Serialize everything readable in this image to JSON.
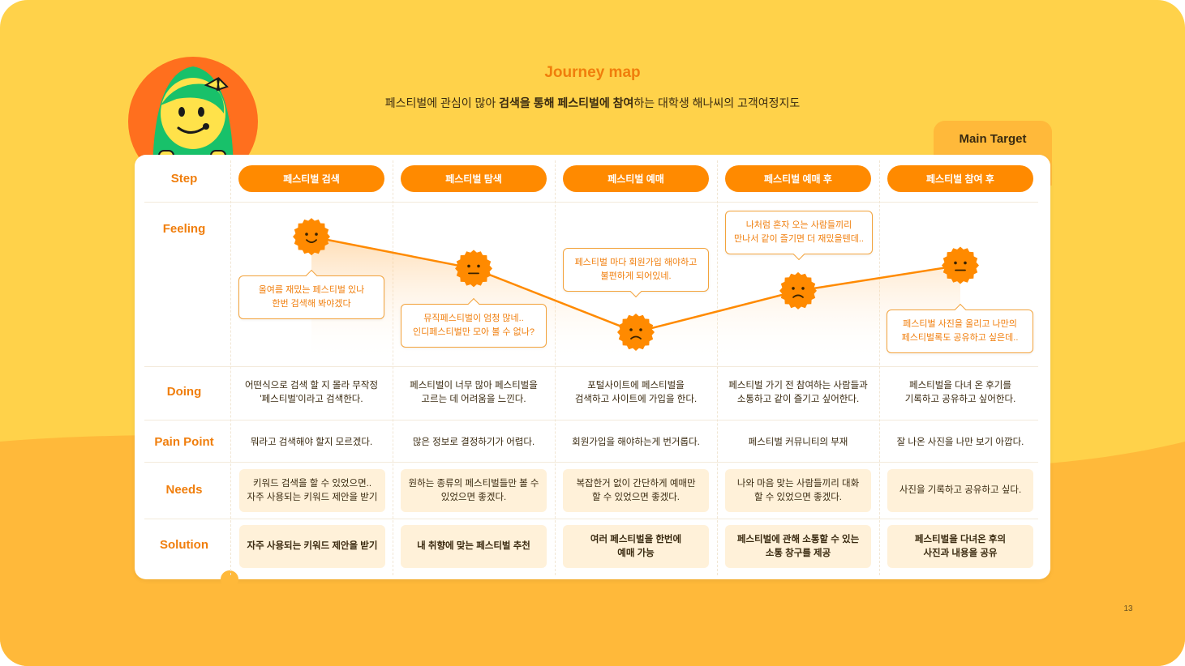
{
  "page": {
    "title": "Journey map",
    "subtitle_pre": "페스티벌에 관심이 많아 ",
    "subtitle_bold1": "검색을 통해 페스티벌에 참여",
    "subtitle_post": "하는 대학생 해나씨의 고객여정지도",
    "main_target": "Main Target",
    "page_number": "13"
  },
  "colors": {
    "background": "#FFD24A",
    "lower_band": "#FFB93A",
    "accent": "#FF8A00",
    "text_orange": "#F07E0C",
    "cell_fill": "#FFF1D9"
  },
  "row_labels": {
    "step": "Step",
    "feeling": "Feeling",
    "doing": "Doing",
    "pain": "Pain Point",
    "needs": "Needs",
    "solution": "Solution"
  },
  "steps": [
    {
      "step": "페스티벌 검색",
      "feeling_level": 4,
      "feeling_face": "smile-face-icon",
      "bubble": "올여름 재밌는 페스티벌 있나\n한번 검색해 봐야겠다",
      "doing": "어떤식으로 검색 할 지 몰라 무작정\n'페스티벌'이라고 검색한다.",
      "pain": "뭐라고 검색해야 할지 모르겠다.",
      "needs": "키워드 검색을 할 수 있었으면..\n자주 사용되는 키워드 제안을 받기",
      "solution": "자주 사용되는 키워드 제안을 받기"
    },
    {
      "step": "페스티벌 탐색",
      "feeling_level": 3,
      "feeling_face": "neutral-face-icon",
      "bubble": "뮤직페스티벌이 엄청 많네..\n인디페스티벌만 모아 볼 수 없나?",
      "doing": "페스티벌이 너무 많아 페스티벌을\n고르는 데 어려움을 느낀다.",
      "pain": "많은 정보로 결정하기가 어렵다.",
      "needs": "원하는 종류의 페스티벌들만 볼 수\n있었으면 좋겠다.",
      "solution": "내 취향에 맞는 페스티벌 추천"
    },
    {
      "step": "페스티벌 예매",
      "feeling_level": 1,
      "feeling_face": "frown-face-icon",
      "bubble": "페스티벌 마다 회원가입 해야하고\n불편하게 되어있네.",
      "doing": "포털사이트에 페스티벌을\n검색하고 사이트에 가입을 한다.",
      "pain": "회원가입을 해야하는게 번거롭다.",
      "needs": "복잡한거 없이 간단하게 예매만\n할 수 있었으면 좋겠다.",
      "solution": "여러 페스티벌을 한번에\n예매 가능"
    },
    {
      "step": "페스티벌 예매 후",
      "feeling_level": 2.3,
      "feeling_face": "frown-face-icon",
      "bubble": "나처럼 혼자 오는 사람들끼리\n만나서 같이 즐기면 더 재밌을텐데..",
      "doing": "페스티벌 가기 전 참여하는 사람들과\n소통하고 같이 즐기고 싶어한다.",
      "pain": "페스티벌 커뮤니티의 부재",
      "needs": "나와 마음 맞는 사람들끼리 대화\n할 수 있었으면 좋겠다.",
      "solution": "페스티벌에 관해 소통할 수 있는\n소통 창구를 제공"
    },
    {
      "step": "페스티벌 참여 후",
      "feeling_level": 3.1,
      "feeling_face": "neutral-face-icon",
      "bubble": "페스티벌 사진을 올리고 나만의\n페스티벌록도 공유하고 싶은데..",
      "doing": "페스티벌을 다녀 온 후기를\n기록하고 공유하고 싶어한다.",
      "pain": "잘 나온 사진을 나만 보기 아깝다.",
      "needs": "사진을 기록하고 공유하고 싶다.",
      "solution": "페스티벌을 다녀온 후의\n사진과 내용을 공유"
    }
  ]
}
